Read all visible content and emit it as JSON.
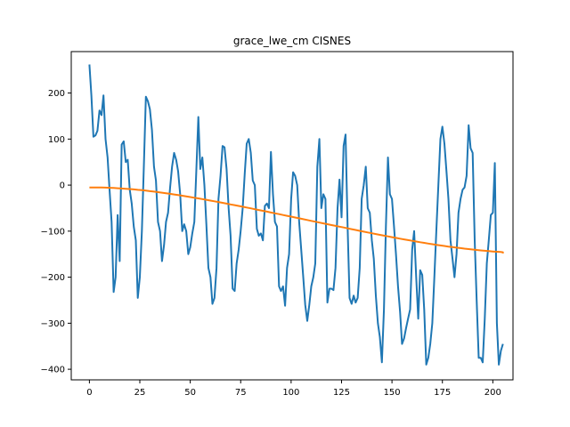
{
  "chart_data": {
    "type": "line",
    "title": "grace_lwe_cm CISNES",
    "xlabel": "",
    "ylabel": "",
    "xlim": [
      -9,
      210
    ],
    "ylim": [
      -423,
      290
    ],
    "grid": false,
    "xticks": [
      0,
      25,
      50,
      75,
      100,
      125,
      150,
      175,
      200
    ],
    "yticks": [
      -400,
      -300,
      -200,
      -100,
      0,
      100,
      200
    ],
    "colors": {
      "series1": "#1f77b4",
      "series2": "#ff7f0e"
    },
    "series": [
      {
        "values": [
          262,
          195,
          105,
          108,
          118,
          162,
          152,
          195,
          100,
          60,
          -10,
          -80,
          -232,
          -200,
          -65,
          -165,
          88,
          95,
          50,
          55,
          -10,
          -40,
          -90,
          -120,
          -245,
          -200,
          -100,
          40,
          192,
          182,
          165,
          120,
          40,
          10,
          -80,
          -100,
          -165,
          -130,
          -80,
          -60,
          -5,
          40,
          70,
          55,
          30,
          -20,
          -100,
          -85,
          -100,
          -150,
          -135,
          -105,
          -80,
          30,
          148,
          35,
          60,
          0,
          -85,
          -180,
          -200,
          -258,
          -245,
          -180,
          -30,
          20,
          85,
          82,
          35,
          -50,
          -110,
          -225,
          -230,
          -170,
          -140,
          -100,
          -50,
          25,
          90,
          100,
          70,
          10,
          0,
          -95,
          -110,
          -105,
          -120,
          -45,
          -40,
          -50,
          72,
          -20,
          -80,
          -90,
          -220,
          -230,
          -220,
          -262,
          -180,
          -150,
          -30,
          28,
          20,
          0,
          -80,
          -140,
          -200,
          -260,
          -295,
          -260,
          -220,
          -200,
          -170,
          40,
          100,
          -50,
          -20,
          -30,
          -255,
          -225,
          -225,
          -228,
          -180,
          -50,
          12,
          -70,
          85,
          110,
          -90,
          -245,
          -258,
          -240,
          -255,
          -245,
          -180,
          -30,
          0,
          40,
          -50,
          -60,
          -120,
          -160,
          -240,
          -300,
          -330,
          -385,
          -270,
          -90,
          60,
          -20,
          -30,
          -90,
          -150,
          -220,
          -275,
          -345,
          -333,
          -310,
          -290,
          -270,
          -140,
          -100,
          -200,
          -290,
          -185,
          -195,
          -270,
          -390,
          -375,
          -345,
          -300,
          -200,
          -100,
          0,
          100,
          127,
          90,
          30,
          -30,
          -120,
          -160,
          -200,
          -150,
          -60,
          -30,
          -10,
          -5,
          20,
          130,
          80,
          70,
          -120,
          -250,
          -375,
          -375,
          -385,
          -290,
          -170,
          -120,
          -65,
          -60,
          48,
          -300,
          -390,
          -360,
          -345
        ]
      },
      {
        "values": [
          -5,
          -5,
          -5.1,
          -5.3,
          -5.5,
          -5.8,
          -6.2,
          -6.7,
          -7.3,
          -7.9,
          -8.6,
          -9.4,
          -10.2,
          -11.1,
          -12.1,
          -13.1,
          -14.2,
          -15.3,
          -16.5,
          -17.7,
          -19,
          -20.3,
          -21.6,
          -23,
          -24.4,
          -25.9,
          -27.4,
          -28.9,
          -30.4,
          -32,
          -33.6,
          -35.2,
          -36.8,
          -38.5,
          -40.2,
          -41.9,
          -43.6,
          -45.3,
          -47,
          -48.8,
          -50.5,
          -52.3,
          -54.1,
          -55.9,
          -57.7,
          -59.5,
          -61.3,
          -63.1,
          -64.9,
          -66.7,
          -68.5,
          -70.4,
          -72.2,
          -74,
          -75.8,
          -77.7,
          -79.5,
          -81.3,
          -83.1,
          -84.9,
          -86.7,
          -88.5,
          -90.3,
          -92.1,
          -93.9,
          -95.7,
          -97.5,
          -99.3,
          -101,
          -102.8,
          -104.5,
          -106.3,
          -108,
          -109.7,
          -111.4,
          -113,
          -114.7,
          -116.3,
          -117.9,
          -119.5,
          -121,
          -122.5,
          -124,
          -125.5,
          -126.9,
          -128.3,
          -129.6,
          -131,
          -132.2,
          -133.5,
          -134.7,
          -135.8,
          -136.9,
          -138,
          -139,
          -140,
          -140.9,
          -141.8,
          -142.6,
          -143.4,
          -144.1,
          -144.8,
          -145.4,
          -145.9,
          -146.4,
          -146.9,
          -147.3,
          -147.6,
          -147.9,
          -148.1,
          -148.3,
          -148.4,
          -148.5,
          -148.5,
          -148.5,
          -148.5,
          -148.5,
          -148.5,
          -148.5,
          -148.5,
          -148.5,
          -148.5,
          -148.5,
          -148.5
        ]
      }
    ]
  }
}
